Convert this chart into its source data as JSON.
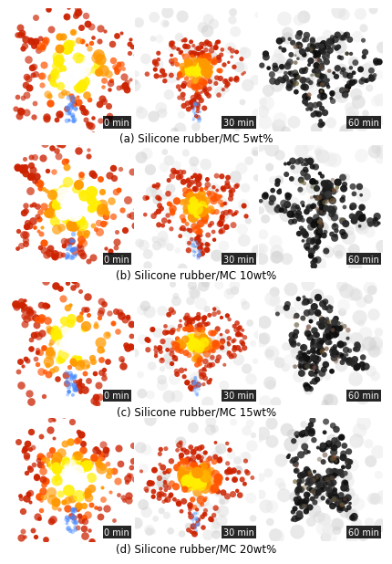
{
  "rows": 4,
  "cols": 3,
  "captions": [
    "(a) Silicone rubber/MC 5wt%",
    "(b) Silicone rubber/MC 10wt%",
    "(c) Silicone rubber/MC 15wt%",
    "(d) Silicone rubber/MC 20wt%"
  ],
  "time_labels": [
    "0 min",
    "30 min",
    "60 min"
  ],
  "fig_width": 4.19,
  "fig_height": 6.05,
  "bg_color": "#ffffff",
  "label_bg": "#000000",
  "label_fg": "#ffffff",
  "caption_color": "#000000",
  "caption_fontsize": 8.5,
  "time_fontsize": 7.0
}
